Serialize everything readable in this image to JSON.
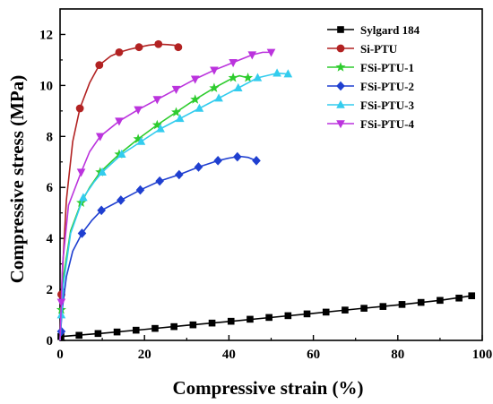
{
  "chart_data": {
    "type": "line",
    "title": "",
    "xlabel": "Compressive strain (%)",
    "ylabel": "Compressive stress (MPa)",
    "xlim": [
      0,
      100
    ],
    "ylim": [
      0,
      13
    ],
    "xticks": [
      0,
      20,
      40,
      60,
      80,
      100
    ],
    "yticks": [
      0,
      2,
      4,
      6,
      8,
      10,
      12
    ],
    "xtick_labels": [
      "0",
      "20",
      "40",
      "60",
      "80",
      "100"
    ],
    "ytick_labels": [
      "0",
      "2",
      "4",
      "6",
      "8",
      "10",
      "12"
    ],
    "grid": false,
    "legend_position": "top-right",
    "series": [
      {
        "name": "Sylgard 184",
        "color": "#000000",
        "marker": "square",
        "markers": [
          [
            0.2,
            0.15
          ],
          [
            4.5,
            0.2
          ],
          [
            9,
            0.27
          ],
          [
            13.5,
            0.33
          ],
          [
            18,
            0.4
          ],
          [
            22.5,
            0.47
          ],
          [
            27,
            0.54
          ],
          [
            31.5,
            0.61
          ],
          [
            36,
            0.68
          ],
          [
            40.5,
            0.75
          ],
          [
            45,
            0.83
          ],
          [
            49.5,
            0.9
          ],
          [
            54,
            0.97
          ],
          [
            58.5,
            1.04
          ],
          [
            63,
            1.11
          ],
          [
            67.5,
            1.19
          ],
          [
            72,
            1.26
          ],
          [
            76.5,
            1.33
          ],
          [
            81,
            1.41
          ],
          [
            85.5,
            1.49
          ],
          [
            90,
            1.57
          ],
          [
            94.5,
            1.66
          ],
          [
            97.5,
            1.75
          ]
        ],
        "curve": [
          [
            0,
            0.1
          ],
          [
            0.2,
            0.15
          ],
          [
            10,
            0.28
          ],
          [
            20,
            0.43
          ],
          [
            30,
            0.59
          ],
          [
            40,
            0.74
          ],
          [
            50,
            0.9
          ],
          [
            60,
            1.06
          ],
          [
            70,
            1.23
          ],
          [
            80,
            1.39
          ],
          [
            90,
            1.57
          ],
          [
            97.5,
            1.75
          ]
        ]
      },
      {
        "name": "Si-PTU",
        "color": "#b22222",
        "marker": "circle",
        "markers": [
          [
            0.3,
            1.8
          ],
          [
            4.7,
            9.1
          ],
          [
            9.3,
            10.8
          ],
          [
            14,
            11.3
          ],
          [
            18.7,
            11.5
          ],
          [
            23.3,
            11.62
          ],
          [
            28,
            11.5
          ]
        ],
        "curve": [
          [
            0,
            0
          ],
          [
            0.5,
            2.5
          ],
          [
            1.5,
            5.5
          ],
          [
            3,
            7.8
          ],
          [
            4.7,
            9.1
          ],
          [
            7,
            10.1
          ],
          [
            9.3,
            10.8
          ],
          [
            12,
            11.15
          ],
          [
            14,
            11.3
          ],
          [
            16.5,
            11.42
          ],
          [
            18.7,
            11.5
          ],
          [
            21,
            11.58
          ],
          [
            23.3,
            11.62
          ],
          [
            25.5,
            11.6
          ],
          [
            27,
            11.58
          ],
          [
            27.7,
            11.52
          ]
        ]
      },
      {
        "name": "FSi-PTU-1",
        "color": "#2ecc2e",
        "marker": "star",
        "markers": [
          [
            0.3,
            1.2
          ],
          [
            5,
            5.4
          ],
          [
            9.5,
            6.6
          ],
          [
            14,
            7.3
          ],
          [
            18.5,
            7.9
          ],
          [
            23,
            8.45
          ],
          [
            27.5,
            8.95
          ],
          [
            32,
            9.45
          ],
          [
            36.5,
            9.9
          ],
          [
            41,
            10.3
          ],
          [
            44.5,
            10.3
          ]
        ],
        "curve": [
          [
            0,
            0
          ],
          [
            0.8,
            2.5
          ],
          [
            2.5,
            4.3
          ],
          [
            5,
            5.4
          ],
          [
            7,
            6
          ],
          [
            9.5,
            6.6
          ],
          [
            14,
            7.3
          ],
          [
            18.5,
            7.9
          ],
          [
            23,
            8.45
          ],
          [
            27.5,
            8.95
          ],
          [
            32,
            9.45
          ],
          [
            36.5,
            9.9
          ],
          [
            41,
            10.3
          ],
          [
            42.5,
            10.38
          ],
          [
            44.5,
            10.3
          ]
        ]
      },
      {
        "name": "FSi-PTU-2",
        "color": "#1f3fd0",
        "marker": "diamond",
        "markers": [
          [
            0.3,
            0.35
          ],
          [
            5.2,
            4.2
          ],
          [
            9.8,
            5.1
          ],
          [
            14.4,
            5.5
          ],
          [
            19,
            5.9
          ],
          [
            23.6,
            6.25
          ],
          [
            28.2,
            6.5
          ],
          [
            32.8,
            6.8
          ],
          [
            37.4,
            7.05
          ],
          [
            42,
            7.2
          ],
          [
            46.5,
            7.05
          ]
        ],
        "curve": [
          [
            0,
            0
          ],
          [
            0.5,
            1.2
          ],
          [
            1.5,
            2.5
          ],
          [
            3,
            3.5
          ],
          [
            5.2,
            4.2
          ],
          [
            7.5,
            4.7
          ],
          [
            9.8,
            5.1
          ],
          [
            14.4,
            5.5
          ],
          [
            19,
            5.9
          ],
          [
            23.6,
            6.25
          ],
          [
            28.2,
            6.5
          ],
          [
            32.8,
            6.8
          ],
          [
            37.4,
            7.05
          ],
          [
            40,
            7.15
          ],
          [
            42.5,
            7.22
          ],
          [
            44.5,
            7.18
          ],
          [
            46.5,
            7.05
          ]
        ]
      },
      {
        "name": "FSi-PTU-3",
        "color": "#33ccee",
        "marker": "triangle-up",
        "markers": [
          [
            0.3,
            1.0
          ],
          [
            5.5,
            5.6
          ],
          [
            10,
            6.6
          ],
          [
            14.6,
            7.3
          ],
          [
            19.2,
            7.8
          ],
          [
            23.8,
            8.3
          ],
          [
            28.4,
            8.7
          ],
          [
            33,
            9.1
          ],
          [
            37.6,
            9.5
          ],
          [
            42.2,
            9.9
          ],
          [
            46.8,
            10.3
          ],
          [
            51.4,
            10.48
          ],
          [
            54,
            10.45
          ]
        ],
        "curve": [
          [
            0,
            0
          ],
          [
            0.8,
            2.2
          ],
          [
            2.5,
            4.2
          ],
          [
            5.5,
            5.6
          ],
          [
            8,
            6.2
          ],
          [
            10,
            6.6
          ],
          [
            14.6,
            7.3
          ],
          [
            19.2,
            7.8
          ],
          [
            23.8,
            8.3
          ],
          [
            28.4,
            8.7
          ],
          [
            33,
            9.1
          ],
          [
            37.6,
            9.5
          ],
          [
            42.2,
            9.9
          ],
          [
            46.8,
            10.3
          ],
          [
            51.4,
            10.48
          ],
          [
            54,
            10.45
          ]
        ]
      },
      {
        "name": "FSi-PTU-4",
        "color": "#bb33dd",
        "marker": "triangle-down",
        "markers": [
          [
            0.3,
            1.5
          ],
          [
            5,
            6.6
          ],
          [
            9.5,
            8.0
          ],
          [
            14,
            8.6
          ],
          [
            18.5,
            9.05
          ],
          [
            23,
            9.45
          ],
          [
            27.5,
            9.85
          ],
          [
            32,
            10.25
          ],
          [
            36.5,
            10.6
          ],
          [
            41,
            10.9
          ],
          [
            45.5,
            11.2
          ],
          [
            50,
            11.3
          ]
        ],
        "curve": [
          [
            0,
            0
          ],
          [
            0.6,
            3
          ],
          [
            2,
            5.3
          ],
          [
            5,
            6.6
          ],
          [
            7,
            7.4
          ],
          [
            9.5,
            8.0
          ],
          [
            14,
            8.6
          ],
          [
            18.5,
            9.05
          ],
          [
            23,
            9.45
          ],
          [
            27.5,
            9.85
          ],
          [
            32,
            10.25
          ],
          [
            36.5,
            10.6
          ],
          [
            41,
            10.9
          ],
          [
            45.5,
            11.2
          ],
          [
            48,
            11.3
          ],
          [
            50,
            11.3
          ]
        ]
      }
    ]
  }
}
